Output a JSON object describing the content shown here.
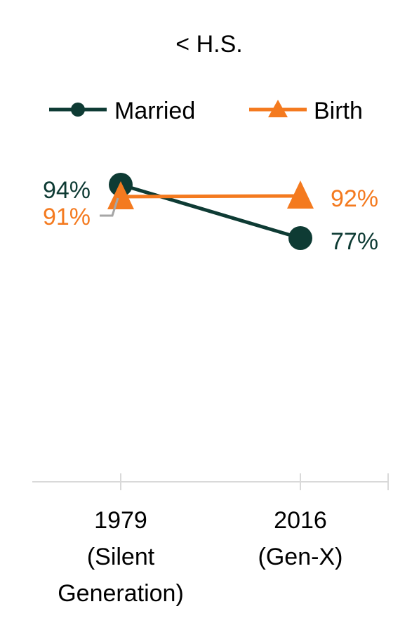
{
  "chart_data": {
    "type": "line",
    "title": "< H.S.",
    "xlabel": "",
    "ylabel": "",
    "ylim": [
      0,
      100
    ],
    "grid": false,
    "legend_position": "top",
    "categories": [
      [
        "1979",
        "(Silent",
        "Generation)"
      ],
      [
        "2016",
        "(Gen-X)"
      ]
    ],
    "series": [
      {
        "name": "Married",
        "values": [
          94,
          77
        ],
        "labels": [
          "94%",
          "77%"
        ],
        "color": "#0e3b34",
        "marker": "circle"
      },
      {
        "name": "Birth",
        "values": [
          91,
          92
        ],
        "labels": [
          "91%",
          "92%"
        ],
        "color": "#f47a1f",
        "marker": "triangle"
      }
    ],
    "axis_color": "#d9d9d9",
    "leader_line_color": "#a6a6a6"
  }
}
